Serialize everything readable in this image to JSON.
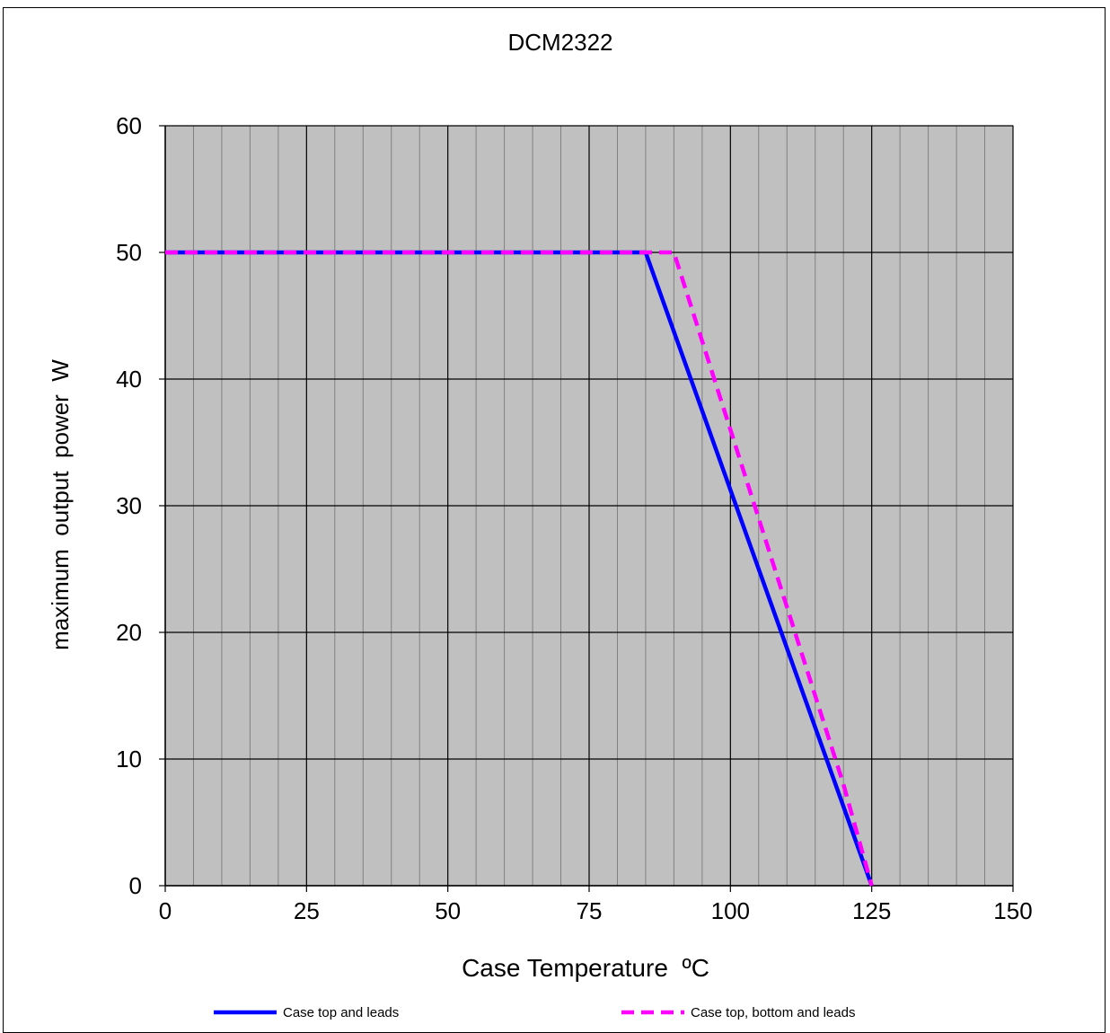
{
  "chart_data": {
    "type": "line",
    "title": "DCM2322",
    "xlabel": "Case Temperature  ºC",
    "ylabel": "maximum  output  power  W",
    "xlim": [
      0,
      150
    ],
    "ylim": [
      0,
      60
    ],
    "x_major_ticks": [
      0,
      25,
      50,
      75,
      100,
      125,
      150
    ],
    "x_tick_labels": [
      "0",
      "25",
      "50",
      "75",
      "100",
      "125",
      "150"
    ],
    "x_minor_step": 5,
    "y_major_ticks": [
      0,
      10,
      20,
      30,
      40,
      50,
      60
    ],
    "y_tick_labels": [
      "0",
      "10",
      "20",
      "30",
      "40",
      "50",
      "60"
    ],
    "grid": true,
    "plot_background": "#c0c0c0",
    "legend_position": "bottom",
    "series": [
      {
        "name": "Case top and leads",
        "color": "#0000ff",
        "dash": false,
        "x": [
          0,
          85,
          125
        ],
        "y": [
          50,
          50,
          0
        ]
      },
      {
        "name": "Case top, bottom and leads",
        "color": "#ff00ff",
        "dash": true,
        "x": [
          0,
          90,
          120,
          125
        ],
        "y": [
          50,
          50,
          8,
          0
        ]
      }
    ]
  }
}
